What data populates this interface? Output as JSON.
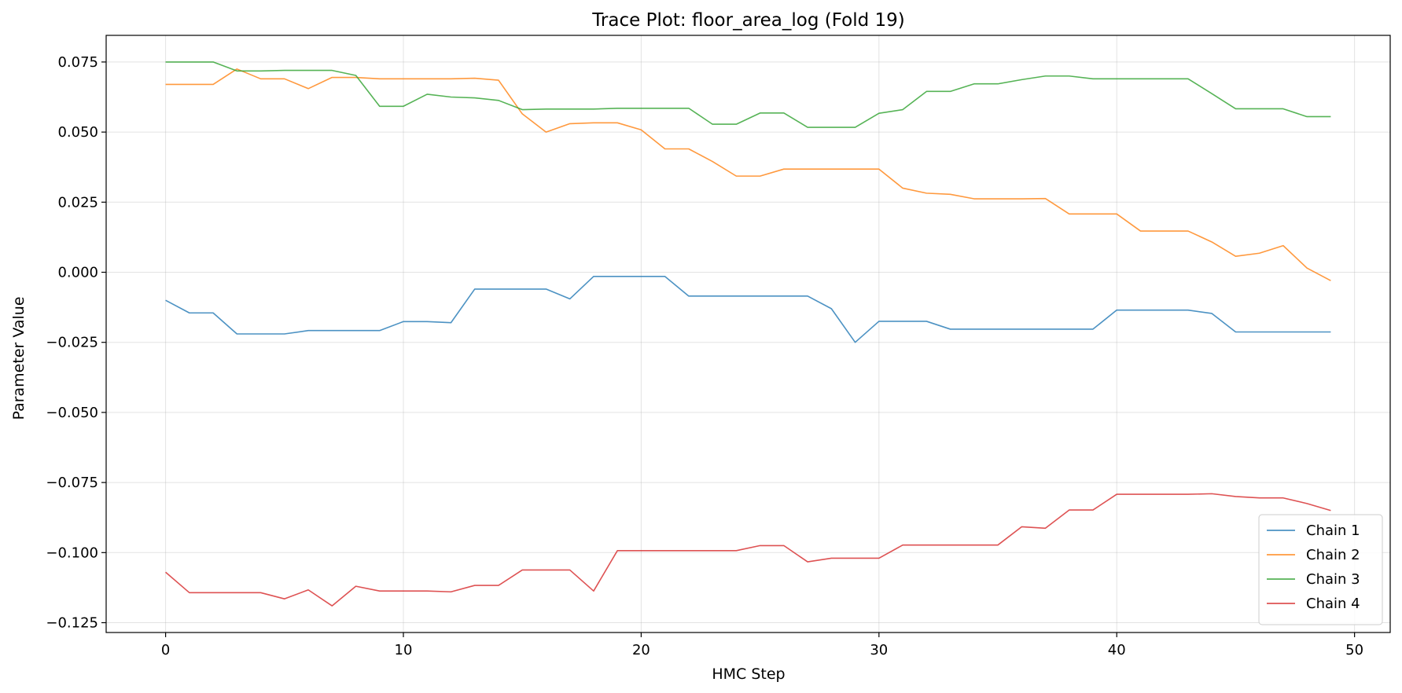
{
  "chart_data": {
    "type": "line",
    "title": "Trace Plot: floor_area_log (Fold 19)",
    "xlabel": "HMC Step",
    "ylabel": "Parameter Value",
    "xlim": [
      -2.5,
      51.5
    ],
    "ylim": [
      -0.1285,
      0.0845
    ],
    "xticks": [
      0,
      10,
      20,
      30,
      40,
      50
    ],
    "xtick_labels": [
      "0",
      "10",
      "20",
      "30",
      "40",
      "50"
    ],
    "yticks": [
      0.075,
      0.05,
      0.025,
      0.0,
      -0.025,
      -0.05,
      -0.075,
      -0.1,
      -0.125
    ],
    "ytick_labels": [
      "0.075",
      "0.050",
      "0.025",
      "0.000",
      "−0.025",
      "−0.050",
      "−0.075",
      "−0.100",
      "−0.125"
    ],
    "grid": true,
    "legend_position": "lower-right",
    "x": [
      0,
      1,
      2,
      3,
      4,
      5,
      6,
      7,
      8,
      9,
      10,
      11,
      12,
      13,
      14,
      15,
      16,
      17,
      18,
      19,
      20,
      21,
      22,
      23,
      24,
      25,
      26,
      27,
      28,
      29,
      30,
      31,
      32,
      33,
      34,
      35,
      36,
      37,
      38,
      39,
      40,
      41,
      42,
      43,
      44,
      45,
      46,
      47,
      48,
      49
    ],
    "series": [
      {
        "name": "Chain 1",
        "color": "#1f77b4",
        "values": [
          -0.01,
          -0.0145,
          -0.0145,
          -0.022,
          -0.022,
          -0.022,
          -0.0208,
          -0.0208,
          -0.0208,
          -0.0208,
          -0.0176,
          -0.0176,
          -0.018,
          -0.006,
          -0.006,
          -0.006,
          -0.006,
          -0.0095,
          -0.0015,
          -0.0015,
          -0.0015,
          -0.0015,
          -0.0085,
          -0.0085,
          -0.0085,
          -0.0085,
          -0.0085,
          -0.0085,
          -0.013,
          -0.025,
          -0.0175,
          -0.0175,
          -0.0175,
          -0.0203,
          -0.0203,
          -0.0203,
          -0.0203,
          -0.0203,
          -0.0203,
          -0.0203,
          -0.0135,
          -0.0135,
          -0.0135,
          -0.0135,
          -0.0147,
          -0.0213,
          -0.0213,
          -0.0213,
          -0.0213,
          -0.0213
        ]
      },
      {
        "name": "Chain 2",
        "color": "#ff7f0e",
        "values": [
          0.067,
          0.067,
          0.067,
          0.0725,
          0.069,
          0.069,
          0.0655,
          0.0695,
          0.0695,
          0.069,
          0.069,
          0.069,
          0.069,
          0.0692,
          0.0685,
          0.0565,
          0.05,
          0.053,
          0.0533,
          0.0533,
          0.0508,
          0.044,
          0.044,
          0.0395,
          0.0343,
          0.0343,
          0.0368,
          0.0368,
          0.0368,
          0.0368,
          0.0368,
          0.03,
          0.0282,
          0.0278,
          0.0262,
          0.0262,
          0.0262,
          0.0263,
          0.0208,
          0.0208,
          0.0208,
          0.0147,
          0.0147,
          0.0147,
          0.0108,
          0.0057,
          0.0068,
          0.0095,
          0.0015,
          -0.003
        ]
      },
      {
        "name": "Chain 3",
        "color": "#2ca02c",
        "values": [
          0.075,
          0.075,
          0.075,
          0.0718,
          0.0718,
          0.072,
          0.072,
          0.072,
          0.0702,
          0.0592,
          0.0592,
          0.0635,
          0.0625,
          0.0622,
          0.0613,
          0.058,
          0.0582,
          0.0582,
          0.0582,
          0.0585,
          0.0585,
          0.0585,
          0.0585,
          0.0528,
          0.0528,
          0.0568,
          0.0568,
          0.0517,
          0.0517,
          0.0517,
          0.0567,
          0.058,
          0.0645,
          0.0645,
          0.0672,
          0.0672,
          0.0687,
          0.07,
          0.07,
          0.069,
          0.069,
          0.069,
          0.069,
          0.069,
          0.0637,
          0.0583,
          0.0583,
          0.0583,
          0.0555,
          0.0555
        ]
      },
      {
        "name": "Chain 4",
        "color": "#d62728",
        "values": [
          -0.107,
          -0.1143,
          -0.1143,
          -0.1143,
          -0.1143,
          -0.1165,
          -0.1133,
          -0.119,
          -0.112,
          -0.1137,
          -0.1137,
          -0.1137,
          -0.114,
          -0.1117,
          -0.1117,
          -0.1062,
          -0.1062,
          -0.1062,
          -0.1137,
          -0.0993,
          -0.0993,
          -0.0993,
          -0.0993,
          -0.0993,
          -0.0993,
          -0.0975,
          -0.0975,
          -0.1033,
          -0.102,
          -0.102,
          -0.102,
          -0.0973,
          -0.0973,
          -0.0973,
          -0.0973,
          -0.0973,
          -0.0908,
          -0.0913,
          -0.0848,
          -0.0848,
          -0.0792,
          -0.0792,
          -0.0792,
          -0.0792,
          -0.079,
          -0.08,
          -0.0805,
          -0.0805,
          -0.0825,
          -0.085
        ]
      }
    ]
  }
}
